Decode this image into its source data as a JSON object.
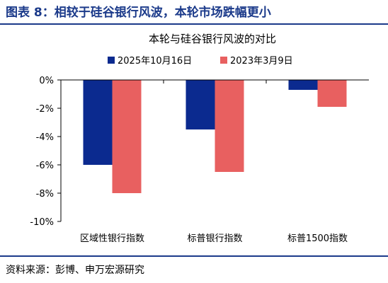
{
  "figure": {
    "title": "图表 8：相较于硅谷银行风波，本轮市场跌幅更小",
    "source": "资料来源：彭博、申万宏源研究"
  },
  "chart_data": {
    "type": "bar",
    "title": "本轮与硅谷银行风波的对比",
    "categories": [
      "区域性银行指数",
      "标普银行指数",
      "标普1500指数"
    ],
    "series": [
      {
        "name": "2025年10月16日",
        "color": "#0b2a8f",
        "values": [
          -6.0,
          -3.5,
          -0.7
        ]
      },
      {
        "name": "2023年3月9日",
        "color": "#e86060",
        "values": [
          -8.0,
          -6.5,
          -1.9
        ]
      }
    ],
    "ylim": [
      -10,
      0
    ],
    "yticks": [
      "0%",
      "-2%",
      "-4%",
      "-6%",
      "-8%",
      "-10%"
    ],
    "xlabel": "",
    "ylabel": "",
    "legend_position": "top",
    "grid": false
  }
}
